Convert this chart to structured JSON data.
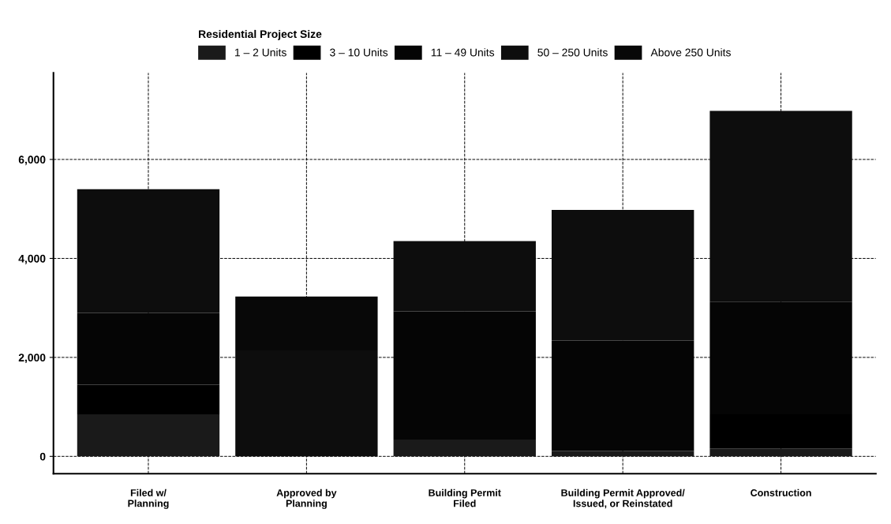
{
  "chart_data": {
    "type": "bar",
    "stacked": true,
    "legend_title": "Residential Project Size",
    "legend": "top",
    "categories": [
      "Filed w/\nPlanning",
      "Approved by\nPlanning",
      "Building Permit\nFiled",
      "Building Permit Approved/\nIssued, or Reinstated",
      "Construction"
    ],
    "series": [
      {
        "name": "1 – 2 Units",
        "color": "#1a1a1a",
        "values": [
          850,
          0,
          340,
          110,
          160
        ]
      },
      {
        "name": "3 – 10 Units",
        "color": "#000000",
        "values": [
          600,
          0,
          0,
          0,
          690
        ]
      },
      {
        "name": "11 – 49 Units",
        "color": "#050505",
        "values": [
          1450,
          0,
          2590,
          2230,
          2270
        ]
      },
      {
        "name": "50 – 250 Units",
        "color": "#0d0d0d",
        "values": [
          2500,
          2140,
          1420,
          2640,
          3860
        ]
      },
      {
        "name": "Above 250 Units",
        "color": "#080808",
        "values": [
          0,
          1090,
          0,
          0,
          0
        ]
      }
    ],
    "ylim": [
      -350,
      7750
    ],
    "yticks": [
      0,
      {
        "value": 2000,
        "label": "2,000"
      },
      {
        "value": 4000,
        "label": "4,000"
      },
      {
        "value": 6000,
        "label": "6,000"
      }
    ],
    "grid": true,
    "line_style": "dashed"
  }
}
